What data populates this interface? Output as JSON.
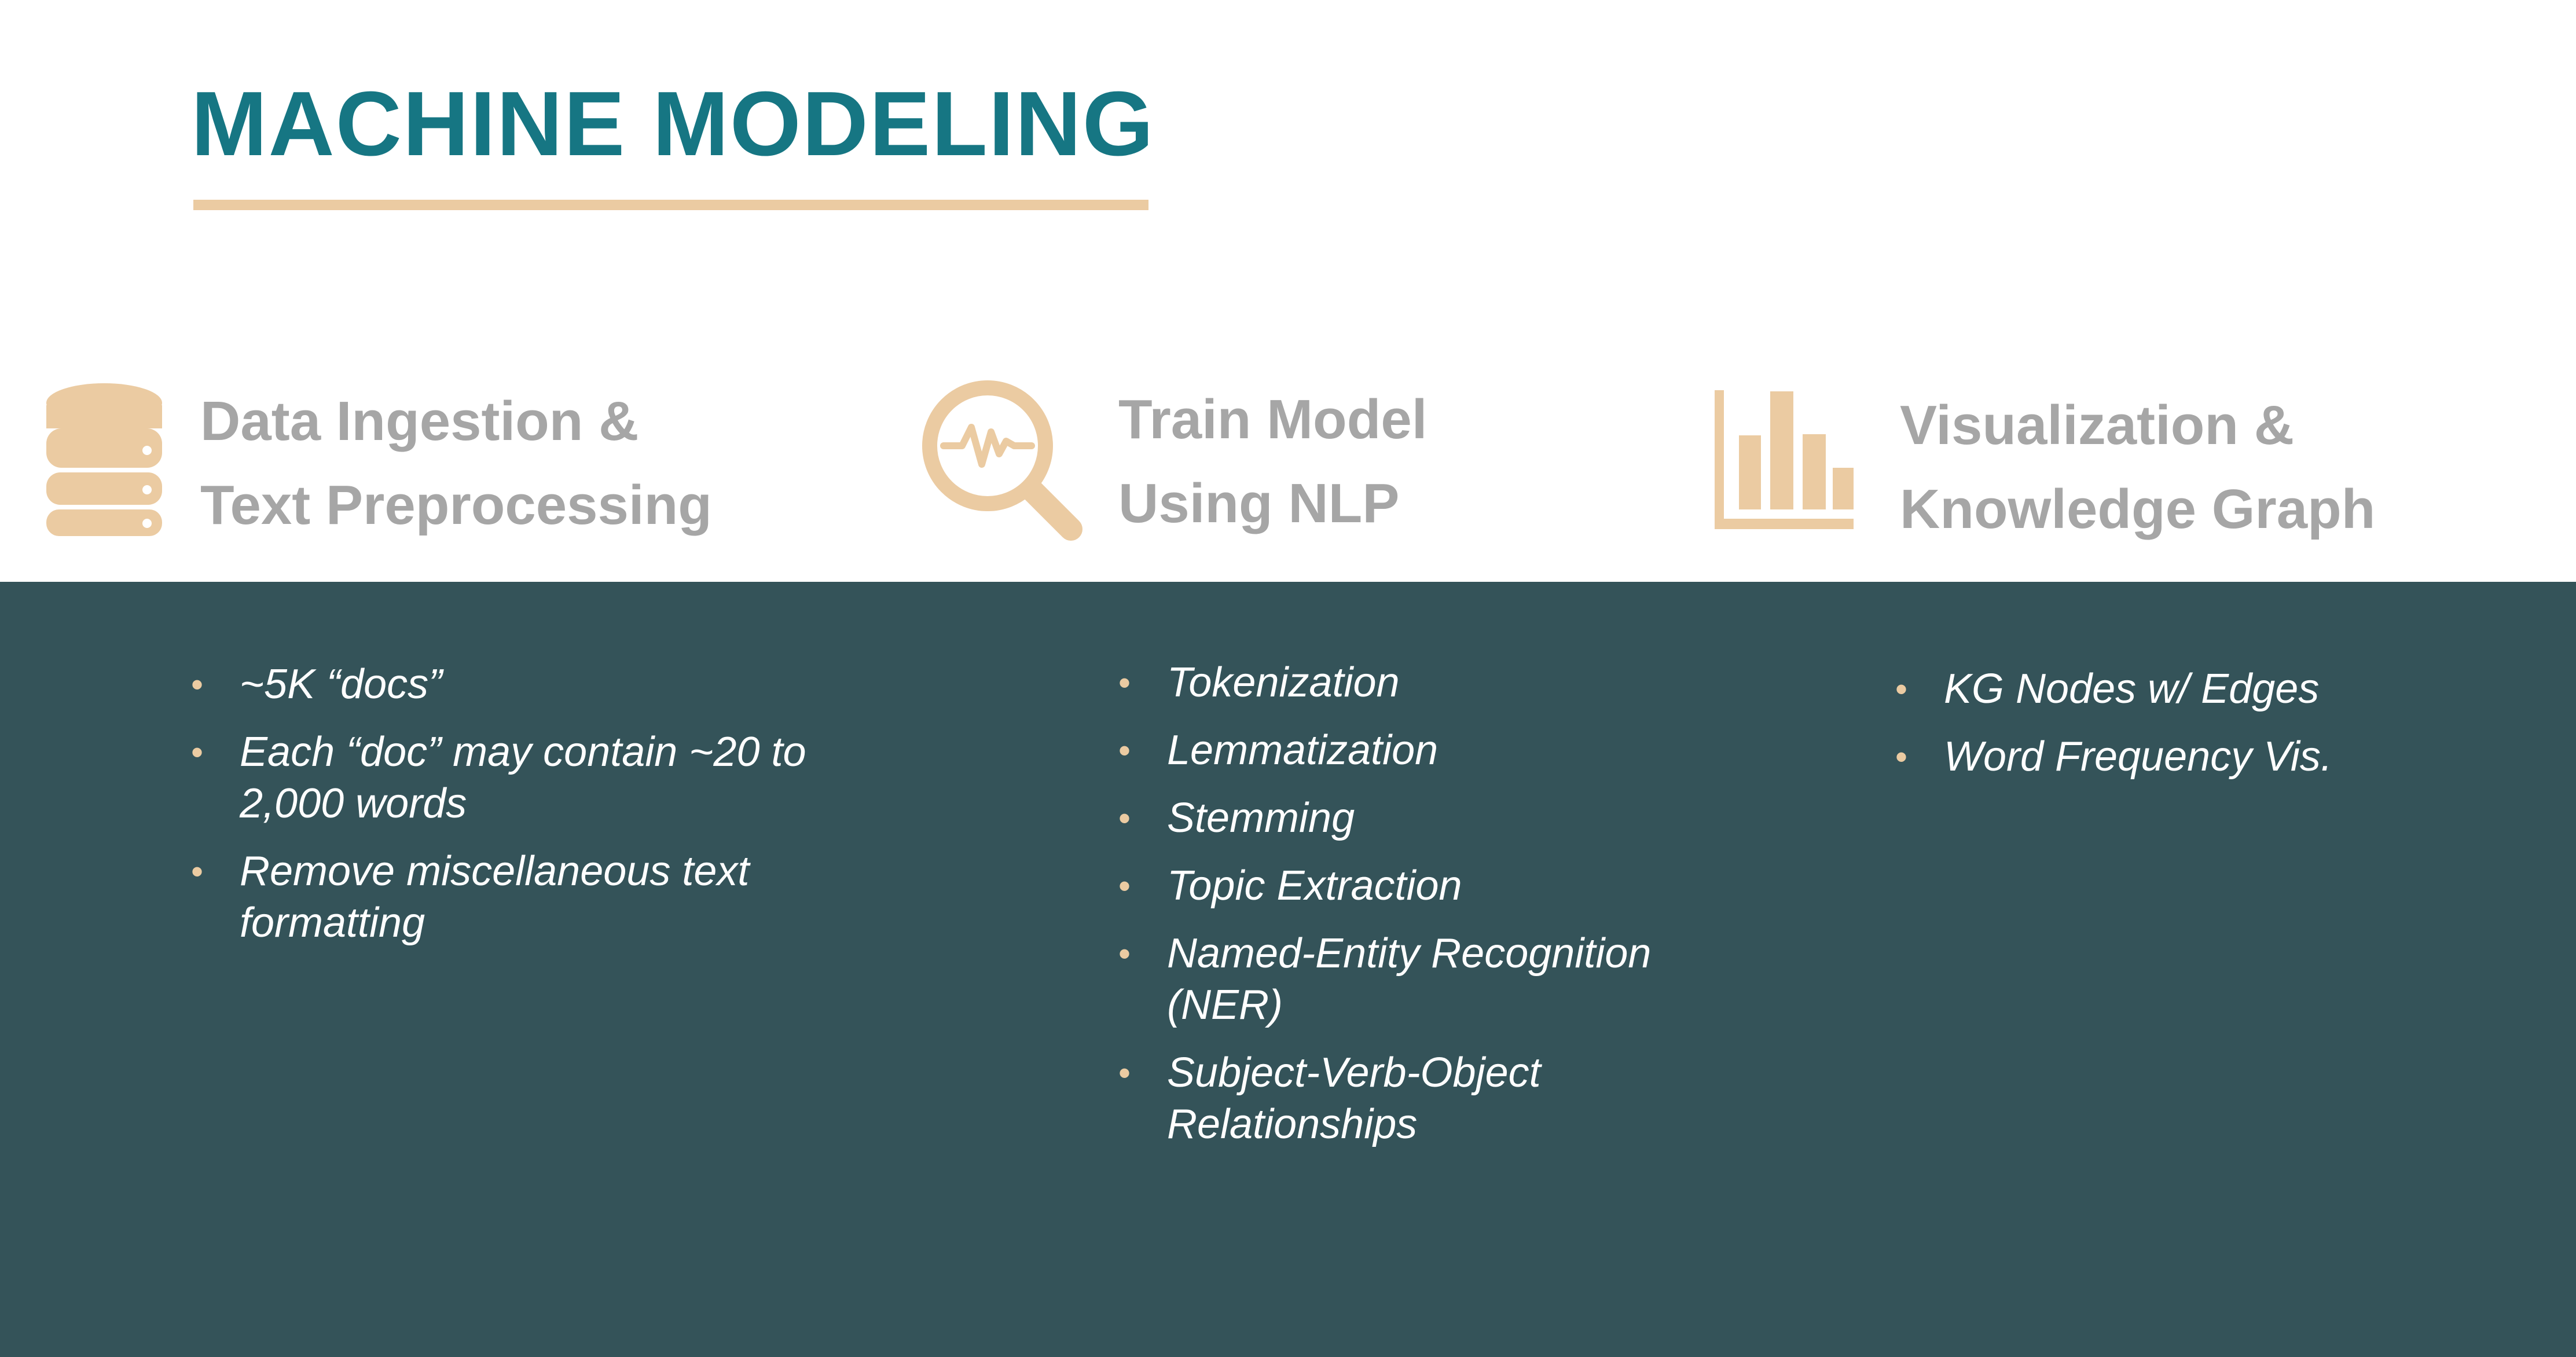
{
  "slide": {
    "title": "MACHINE MODELING",
    "accent_color": "#ebcba2",
    "title_color": "#167683",
    "band_color": "#345359"
  },
  "columns": [
    {
      "icon": "database-icon",
      "title_lines": [
        "Data Ingestion &",
        "Text Preprocessing"
      ],
      "bullets": [
        "~5K “docs”",
        "Each “doc” may contain ~20 to 2,000 words",
        "Remove miscellaneous text formatting"
      ]
    },
    {
      "icon": "magnifier-pulse-icon",
      "title_lines": [
        "Train Model",
        "Using NLP"
      ],
      "bullets": [
        "Tokenization",
        "Lemmatization",
        "Stemming",
        "Topic Extraction",
        "Named-Entity Recognition (NER)",
        "Subject-Verb-Object Relationships"
      ]
    },
    {
      "icon": "bar-chart-icon",
      "title_lines": [
        "Visualization &",
        "Knowledge Graph"
      ],
      "bullets": [
        "KG Nodes w/ Edges",
        "Word Frequency Vis."
      ]
    }
  ]
}
